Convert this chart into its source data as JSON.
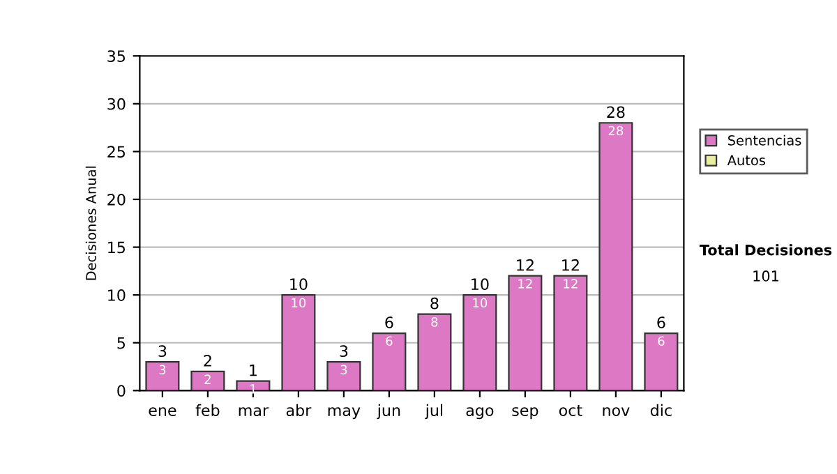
{
  "chart_data": {
    "type": "bar",
    "ylabel": "Decisiones Anual",
    "categories": [
      "ene",
      "feb",
      "mar",
      "abr",
      "may",
      "jun",
      "jul",
      "ago",
      "sep",
      "oct",
      "nov",
      "dic"
    ],
    "series": [
      {
        "name": "Sentencias",
        "color": "#dc78c4",
        "values": [
          3,
          2,
          1,
          10,
          3,
          6,
          8,
          10,
          12,
          12,
          28,
          6
        ],
        "value_labels": [
          "3",
          "2",
          "1",
          "10",
          "3",
          "6",
          "8",
          "10",
          "12",
          "12",
          "28",
          "6"
        ]
      },
      {
        "name": "Autos",
        "color": "#e8f0a0",
        "values": [
          0,
          0,
          0,
          0,
          0,
          0,
          0,
          0,
          0,
          0,
          0,
          0
        ]
      }
    ],
    "stacked": true,
    "totals": [
      "3",
      "2",
      "1",
      "10",
      "3",
      "6",
      "8",
      "10",
      "12",
      "12",
      "28",
      "6"
    ],
    "ylim": [
      0,
      35
    ],
    "yticks": [
      0,
      5,
      10,
      15,
      20,
      25,
      30,
      35
    ],
    "grid": "y",
    "legend": "right",
    "annotations": [
      "Total Decisiones",
      "101"
    ]
  }
}
